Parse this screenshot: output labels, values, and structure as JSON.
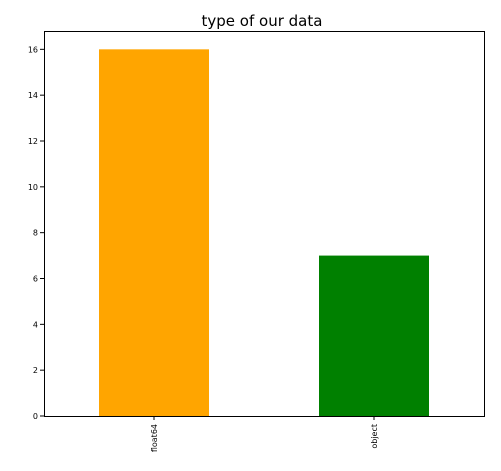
{
  "chart_data": {
    "type": "bar",
    "title": "type of our data",
    "categories": [
      "float64",
      "object"
    ],
    "values": [
      16,
      7
    ],
    "colors": [
      "#ffa500",
      "#008000"
    ],
    "xlabel": "",
    "ylabel": "",
    "ylim": [
      0,
      16.8
    ],
    "yticks": [
      0,
      2,
      4,
      6,
      8,
      10,
      12,
      14,
      16
    ],
    "ytick_labels": [
      "0",
      "2",
      "4",
      "6",
      "8",
      "10",
      "12",
      "14",
      "16"
    ],
    "grid": false,
    "legend": "none"
  }
}
